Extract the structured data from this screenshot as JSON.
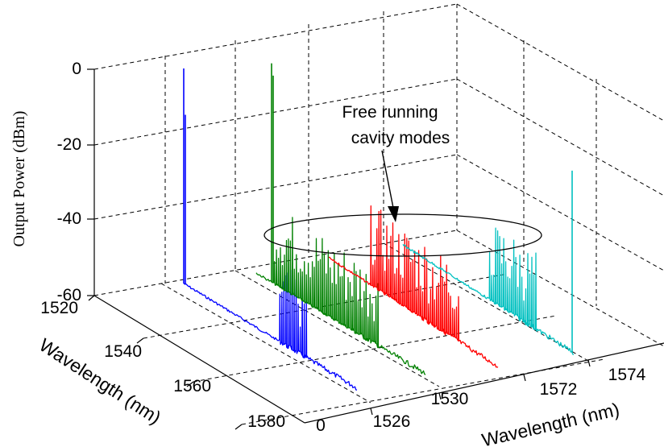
{
  "chart_data": {
    "type": "line",
    "title": "",
    "ylabel": "Output Power (dBm)",
    "xlabel_left": "Wavelength (nm)",
    "xlabel_right": "Wavelength (nm)",
    "z_ticks": [
      "0",
      "-20",
      "-40",
      "-60"
    ],
    "z_range": [
      -60,
      0
    ],
    "left_axis_ticks": [
      "1520",
      "1540",
      "1560",
      "1580"
    ],
    "right_axis_ticks": [
      "0",
      "1526",
      "1530",
      "1572",
      "1574"
    ],
    "grid": true,
    "annotation": {
      "lines": [
        "Free running",
        "cavity modes"
      ]
    },
    "series": [
      {
        "color": "#0000ff",
        "lasing_peaks": [
          {
            "wavelength": 1525,
            "power": -3
          },
          {
            "wavelength": 1525.4,
            "power": -15
          }
        ],
        "mode_region": [
          1547,
          1556
        ],
        "floor_start": -59,
        "floor_end": -85
      },
      {
        "color": "#008000",
        "lasing_peaks": [
          {
            "wavelength": 1535,
            "power": -2
          },
          {
            "wavelength": 1535.3,
            "power": -5
          }
        ],
        "mode_region": [
          1550,
          1559
        ],
        "floor_start": -56,
        "floor_end": -82
      },
      {
        "color": "#ff0000",
        "lasing_peaks": [],
        "mode_region": [
          1547,
          1556
        ],
        "floor_start": -52,
        "floor_end": -80
      },
      {
        "color": "#00c0c0",
        "lasing_peaks": [
          {
            "wavelength": 1580,
            "power": -12
          }
        ],
        "mode_region": [
          1547,
          1556
        ],
        "floor_start": -50,
        "floor_end": -76
      }
    ]
  }
}
